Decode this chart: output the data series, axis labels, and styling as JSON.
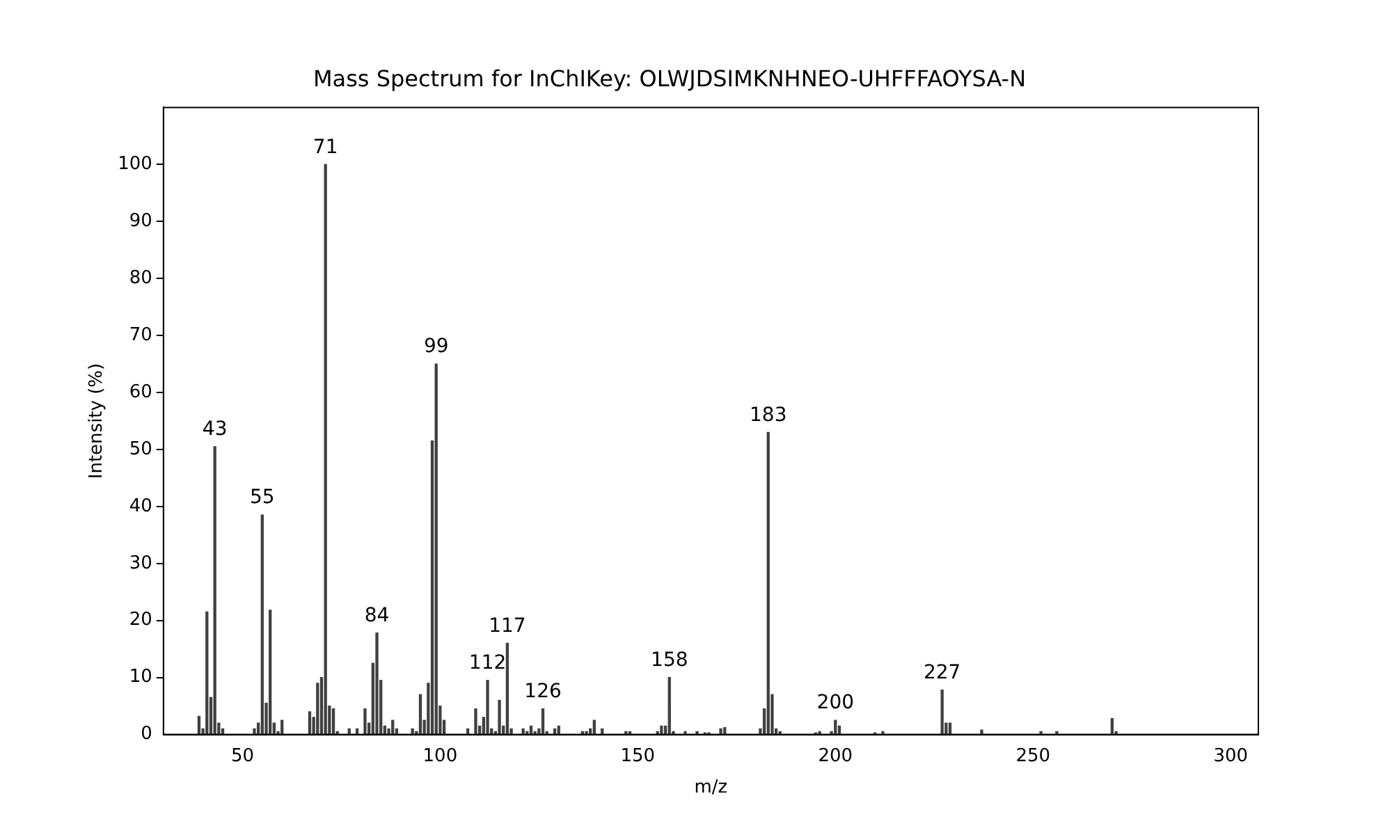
{
  "chart_data": {
    "type": "bar",
    "title": "Mass Spectrum for InChIKey: OLWJDSIMKNHNEO-UHFFFAOYSA-N",
    "xlabel": "m/z",
    "ylabel": "Intensity (%)",
    "x": [
      39,
      40,
      41,
      42,
      43,
      44,
      45,
      53,
      54,
      55,
      56,
      57,
      58,
      59,
      60,
      67,
      68,
      69,
      70,
      71,
      72,
      73,
      74,
      77,
      79,
      81,
      82,
      83,
      84,
      85,
      86,
      87,
      88,
      89,
      93,
      94,
      95,
      96,
      97,
      98,
      99,
      100,
      101,
      107,
      109,
      110,
      111,
      112,
      113,
      114,
      115,
      116,
      117,
      118,
      121,
      122,
      123,
      124,
      125,
      126,
      127,
      129,
      130,
      136,
      137,
      138,
      139,
      141,
      147,
      148,
      155,
      156,
      157,
      158,
      159,
      162,
      165,
      167,
      168,
      171,
      172,
      181,
      182,
      183,
      184,
      185,
      186,
      195,
      196,
      199,
      200,
      201,
      210,
      212,
      227,
      228,
      229,
      237,
      252,
      256,
      270,
      271
    ],
    "values": [
      3.2,
      1,
      21.5,
      6.5,
      50.5,
      2,
      1,
      1,
      2,
      38.5,
      5.5,
      21.8,
      2,
      0.5,
      2.5,
      4,
      3,
      9,
      10,
      100,
      5,
      4.5,
      0.5,
      1,
      1,
      4.5,
      2,
      12.5,
      17.8,
      9.5,
      1.5,
      1,
      2.5,
      1,
      1,
      0.5,
      7,
      2.5,
      9,
      51.5,
      65,
      5,
      2.5,
      1,
      4.5,
      1.5,
      3,
      9.5,
      1,
      0.5,
      6,
      1.5,
      16,
      1,
      1,
      0.5,
      1.5,
      0.5,
      1,
      4.5,
      0.5,
      1,
      1.5,
      0.5,
      0.5,
      1,
      2.5,
      1,
      0.5,
      0.5,
      0.5,
      1.5,
      1.5,
      10,
      0.5,
      0.5,
      0.5,
      0.3,
      0.3,
      1,
      1.2,
      1,
      4.5,
      53,
      7,
      1,
      0.5,
      0.3,
      0.5,
      0.5,
      2.5,
      1.5,
      0.3,
      0.5,
      7.8,
      2,
      2,
      0.8,
      0.5,
      0.5,
      2.8,
      0.5
    ],
    "color": "#404040",
    "xlim": [
      30,
      307
    ],
    "xticks": [
      50,
      100,
      150,
      200,
      250,
      300
    ],
    "ylim": [
      0,
      110
    ],
    "yticks": [
      0,
      10,
      20,
      30,
      40,
      50,
      60,
      70,
      80,
      90,
      100
    ],
    "grid": false,
    "legend": false,
    "annotations": [
      {
        "text": "43",
        "x": 43,
        "y": 50.5
      },
      {
        "text": "55",
        "x": 55,
        "y": 38.5
      },
      {
        "text": "71",
        "x": 71,
        "y": 100
      },
      {
        "text": "84",
        "x": 84,
        "y": 17.8
      },
      {
        "text": "99",
        "x": 99,
        "y": 65
      },
      {
        "text": "112",
        "x": 112,
        "y": 9.5
      },
      {
        "text": "117",
        "x": 117,
        "y": 16
      },
      {
        "text": "126",
        "x": 126,
        "y": 4.5
      },
      {
        "text": "158",
        "x": 158,
        "y": 10
      },
      {
        "text": "183",
        "x": 183,
        "y": 53
      },
      {
        "text": "200",
        "x": 200,
        "y": 2.5
      },
      {
        "text": "227",
        "x": 227,
        "y": 7.8
      }
    ]
  }
}
